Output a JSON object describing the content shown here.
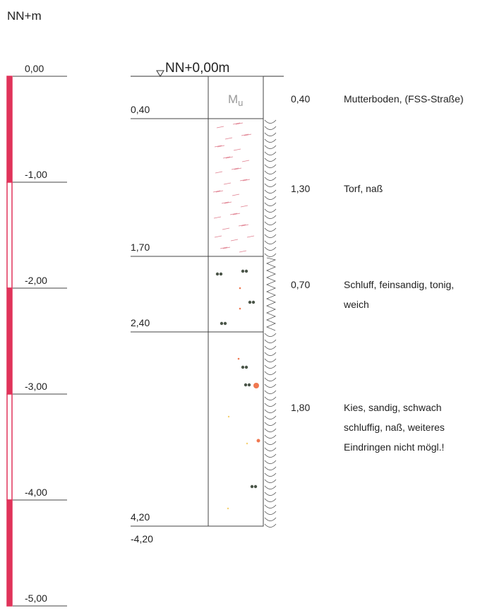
{
  "header": {
    "unit": "NN+m"
  },
  "scale": {
    "labels": [
      "0,00",
      "-1,00",
      "-2,00",
      "-3,00",
      "-4,00",
      "-5,00"
    ]
  },
  "ground": {
    "label": "NN+0,00m"
  },
  "column": {
    "symbol": "M",
    "symbol_sub": "u"
  },
  "depths": [
    "0,40",
    "1,70",
    "2,40",
    "4,20"
  ],
  "bottom_elevation": "-4,20",
  "layers": [
    {
      "thickness": "0,40",
      "description": [
        "Mutterboden, (FSS-Straße)"
      ]
    },
    {
      "thickness": "1,30",
      "description": [
        "Torf, naß"
      ]
    },
    {
      "thickness": "0,70",
      "description": [
        "Schluff, feinsandig, tonig,",
        "weich"
      ]
    },
    {
      "thickness": "1,80",
      "description": [
        "Kies, sandig, schwach",
        "schluffig, naß, weiteres",
        "Eindringen nicht mögl.!"
      ]
    }
  ]
}
